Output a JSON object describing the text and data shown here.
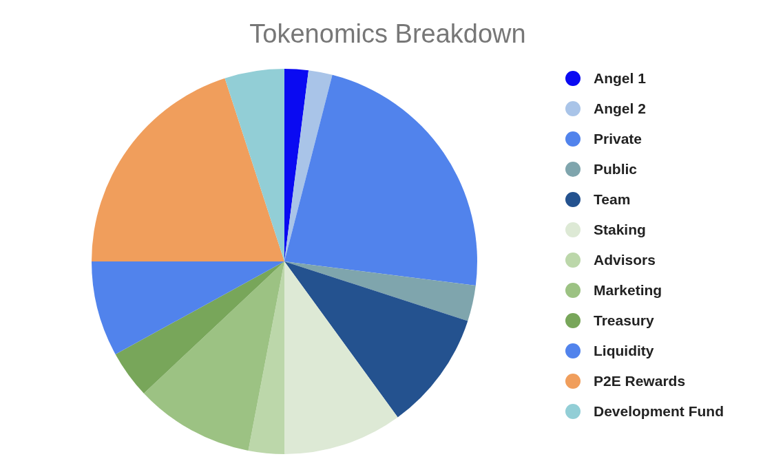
{
  "chart_data": {
    "type": "pie",
    "title": "Tokenomics Breakdown",
    "categories": [
      "Angel 1",
      "Angel 2",
      "Private",
      "Public",
      "Team",
      "Staking",
      "Advisors",
      "Marketing",
      "Treasury",
      "Liquidity",
      "P2E Rewards",
      "Development Fund"
    ],
    "values": [
      2,
      2,
      23,
      3,
      10,
      10,
      3,
      10,
      4,
      8,
      20,
      5
    ],
    "colors": [
      "#0a0af2",
      "#a9c4e8",
      "#5183ec",
      "#7fa5ad",
      "#24528f",
      "#dde9d5",
      "#bcd7aa",
      "#9cc283",
      "#78a65a",
      "#5183ec",
      "#f09e5c",
      "#92ced6"
    ],
    "legend": "right"
  }
}
